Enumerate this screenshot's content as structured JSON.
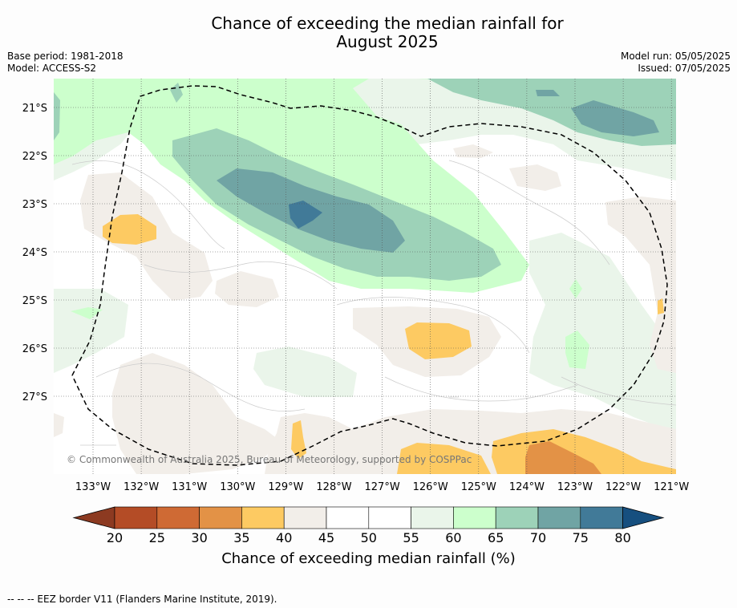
{
  "title_line1": "Chance of exceeding the median rainfall for",
  "title_line2": "August 2025",
  "meta_left": {
    "base_period": "Base period: 1981-2018",
    "model": "Model: ACCESS-S2"
  },
  "meta_right": {
    "model_run": "Model run: 05/05/2025",
    "issued": "Issued: 07/05/2025"
  },
  "copyright": "© Commonwealth of Australia 2025, Bureau of Meteorology, supported by COSPPac",
  "lat_labels": [
    "21°S",
    "22°S",
    "23°S",
    "24°S",
    "25°S",
    "26°S",
    "27°S"
  ],
  "lon_labels": [
    "133°W",
    "132°W",
    "131°W",
    "130°W",
    "129°W",
    "128°W",
    "127°W",
    "126°W",
    "125°W",
    "124°W",
    "123°W",
    "122°W",
    "121°W"
  ],
  "colorbar": {
    "ticks": [
      "20",
      "25",
      "30",
      "35",
      "40",
      "45",
      "50",
      "55",
      "60",
      "65",
      "70",
      "75",
      "80"
    ],
    "label": "Chance of exceeding median rainfall (%)",
    "colors": {
      "below20": "#8c3a21",
      "c20_25": "#b44c26",
      "c25_30": "#cf6a34",
      "c30_35": "#e39246",
      "c35_40": "#fdca62",
      "c40_45": "#f2eee9",
      "c45_50": "#ffffff",
      "c50_55": "#ffffff",
      "c55_60": "#eaf5ea",
      "c60_65": "#ccffcc",
      "c65_70": "#9dd2b8",
      "c70_75": "#70a4a4",
      "c75_80": "#417a98",
      "above80": "#164f7f"
    }
  },
  "footnote": "-- -- -- EEZ border V11 (Flanders Marine Institute, 2019)."
}
